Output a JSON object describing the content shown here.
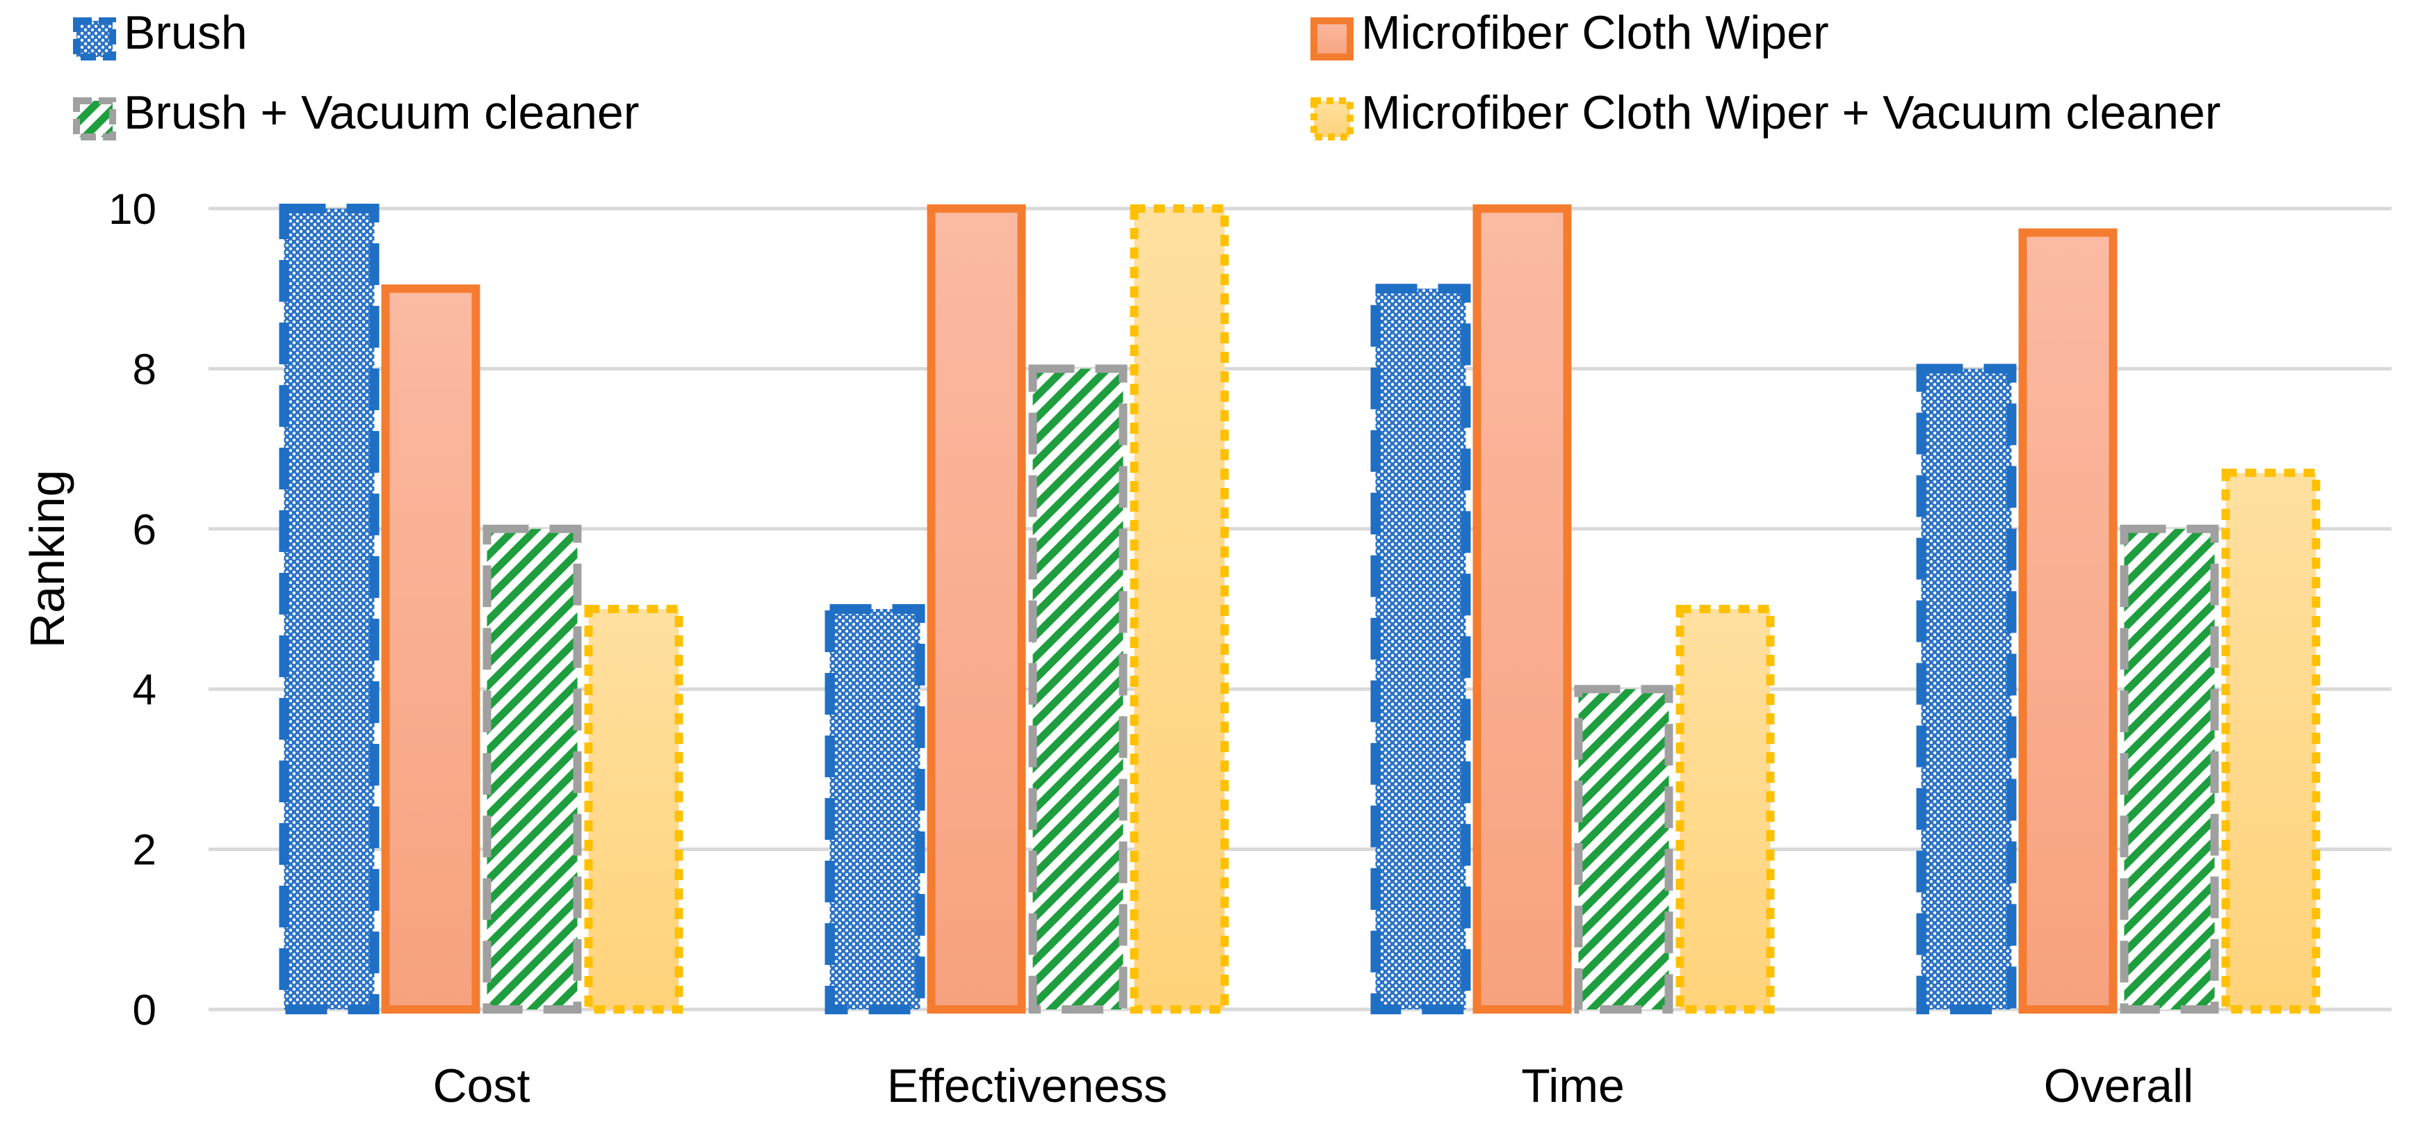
{
  "chart_data": {
    "type": "bar",
    "title": "",
    "xlabel": "",
    "ylabel": "Ranking",
    "ylim": [
      0,
      10
    ],
    "yticks": [
      0,
      2,
      4,
      6,
      8,
      10
    ],
    "grid": true,
    "legend_position": "top",
    "categories": [
      "Cost",
      "Effectiveness",
      "Time",
      "Overall"
    ],
    "series": [
      {
        "name": "Brush",
        "values": [
          10,
          5,
          9,
          8
        ],
        "color": "#1f6fc5",
        "fill": "#dbe8f7",
        "style": "dots-dashed"
      },
      {
        "name": "Microfiber Cloth Wiper",
        "values": [
          9,
          10,
          10,
          9.7
        ],
        "color": "#f47c30",
        "fill": "#f9b39a",
        "style": "solid"
      },
      {
        "name": "Brush + Vacuum cleaner",
        "values": [
          6,
          8,
          4,
          6
        ],
        "color": "#9e9e9e",
        "fill": "#1e9e3e",
        "style": "stripes-dashed"
      },
      {
        "name": "Microfiber Cloth Wiper + Vacuum cleaner",
        "values": [
          5,
          10,
          5,
          6.7
        ],
        "color": "#ffc000",
        "fill": "#ffd98a",
        "style": "dotted"
      }
    ]
  }
}
